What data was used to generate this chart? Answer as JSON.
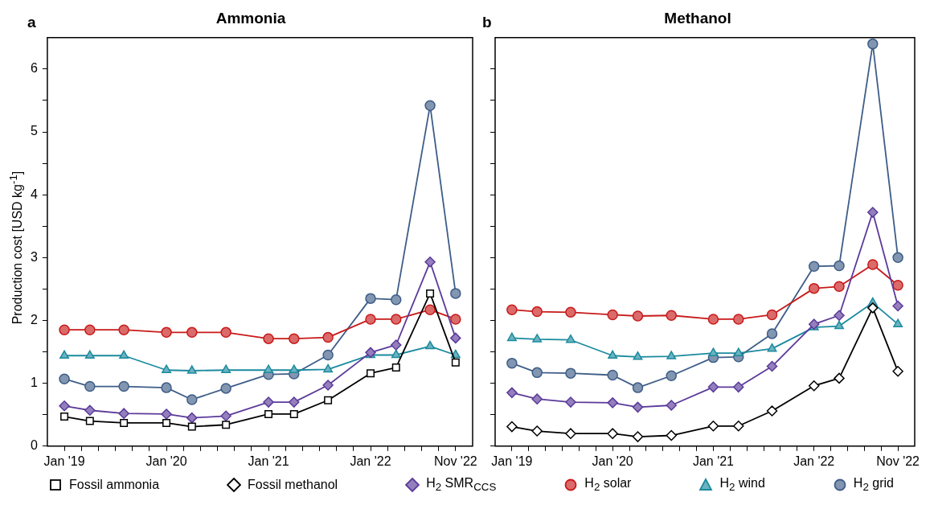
{
  "chart_data": [
    {
      "type": "line",
      "title": "Ammonia",
      "ylabel": "Production cost [USD kg$^{-1}$]",
      "annotations": [
        "a"
      ],
      "x": [
        "2019-01",
        "2019-04",
        "2019-08",
        "2020-01",
        "2020-04",
        "2020-08",
        "2021-01",
        "2021-04",
        "2021-08",
        "2022-01",
        "2022-04",
        "2022-08",
        "2022-11"
      ],
      "series": [
        {
          "name": "Fossil ammonia",
          "color": "#000000",
          "marker": "square",
          "values": [
            0.47,
            0.4,
            0.37,
            0.37,
            0.31,
            0.34,
            0.51,
            0.51,
            0.73,
            1.16,
            1.25,
            2.43,
            1.33
          ]
        },
        {
          "name": "H$_{2}$ SMR$_{CCS}$",
          "color": "#5b3a9a",
          "marker": "diamond",
          "values": [
            0.64,
            0.57,
            0.52,
            0.51,
            0.45,
            0.48,
            0.7,
            0.7,
            0.97,
            1.49,
            1.61,
            2.93,
            1.72
          ]
        },
        {
          "name": "H$_{2}$ solar",
          "color": "#c81a1a",
          "marker": "circle",
          "values": [
            1.85,
            1.85,
            1.85,
            1.81,
            1.81,
            1.81,
            1.71,
            1.71,
            1.73,
            2.02,
            2.02,
            2.17,
            2.02
          ]
        },
        {
          "name": "H$_{2}$ wind",
          "color": "#1b8a9e",
          "marker": "triangle",
          "values": [
            1.44,
            1.44,
            1.44,
            1.21,
            1.2,
            1.21,
            1.21,
            1.21,
            1.22,
            1.45,
            1.45,
            1.59,
            1.45
          ]
        },
        {
          "name": "H$_{2}$ grid",
          "color": "#3e5d87",
          "marker": "circle",
          "values": [
            1.07,
            0.95,
            0.95,
            0.93,
            0.74,
            0.92,
            1.14,
            1.15,
            1.45,
            2.35,
            2.33,
            5.42,
            2.43
          ]
        }
      ],
      "xlim": [
        "2018-11",
        "2023-01"
      ],
      "xticks": [
        {
          "value": "2019-01",
          "label": "Jan '19"
        },
        {
          "value": "2019-03",
          "label": null
        },
        {
          "value": "2019-05",
          "label": null
        },
        {
          "value": "2019-07",
          "label": null
        },
        {
          "value": "2019-09",
          "label": null
        },
        {
          "value": "2019-11",
          "label": null
        },
        {
          "value": "2020-01",
          "label": "Jan '20"
        },
        {
          "value": "2020-03",
          "label": null
        },
        {
          "value": "2020-05",
          "label": null
        },
        {
          "value": "2020-07",
          "label": null
        },
        {
          "value": "2020-09",
          "label": null
        },
        {
          "value": "2020-11",
          "label": null
        },
        {
          "value": "2021-01",
          "label": "Jan '21"
        },
        {
          "value": "2021-03",
          "label": null
        },
        {
          "value": "2021-05",
          "label": null
        },
        {
          "value": "2021-07",
          "label": null
        },
        {
          "value": "2021-09",
          "label": null
        },
        {
          "value": "2021-11",
          "label": null
        },
        {
          "value": "2022-01",
          "label": "Jan '22"
        },
        {
          "value": "2022-03",
          "label": null
        },
        {
          "value": "2022-05",
          "label": null
        },
        {
          "value": "2022-07",
          "label": null
        },
        {
          "value": "2022-09",
          "label": null
        },
        {
          "value": "2022-11",
          "label": "Nov '22"
        }
      ],
      "ylim": [
        0,
        6.5
      ],
      "yticks": [
        0,
        {
          "value": 0.5,
          "label": null
        },
        1,
        {
          "value": 1.5,
          "label": null
        },
        2,
        {
          "value": 2.5,
          "label": null
        },
        3,
        {
          "value": 3.5,
          "label": null
        },
        4,
        {
          "value": 4.5,
          "label": null
        },
        5,
        {
          "value": 5.5,
          "label": null
        },
        6
      ],
      "grid": false,
      "legend": "bottom"
    },
    {
      "type": "line",
      "title": "Methanol",
      "annotations": [
        "b"
      ],
      "x": [
        "2019-01",
        "2019-04",
        "2019-08",
        "2020-01",
        "2020-04",
        "2020-08",
        "2021-01",
        "2021-04",
        "2021-08",
        "2022-01",
        "2022-04",
        "2022-08",
        "2022-11"
      ],
      "series": [
        {
          "name": "Fossil methanol",
          "color": "#000000",
          "marker": "diamond",
          "values": [
            0.31,
            0.24,
            0.2,
            0.2,
            0.15,
            0.17,
            0.32,
            0.32,
            0.56,
            0.96,
            1.08,
            2.2,
            1.19
          ]
        },
        {
          "color": "#5b3a9a",
          "marker": "diamond",
          "values": [
            0.85,
            0.75,
            0.7,
            0.69,
            0.62,
            0.65,
            0.94,
            0.94,
            1.27,
            1.94,
            2.08,
            3.72,
            2.23
          ]
        },
        {
          "color": "#c81a1a",
          "marker": "circle",
          "values": [
            2.17,
            2.14,
            2.13,
            2.09,
            2.07,
            2.08,
            2.02,
            2.02,
            2.09,
            2.51,
            2.54,
            2.89,
            2.56
          ]
        },
        {
          "color": "#1b8a9e",
          "marker": "triangle",
          "values": [
            1.72,
            1.7,
            1.69,
            1.44,
            1.42,
            1.43,
            1.48,
            1.48,
            1.55,
            1.89,
            1.91,
            2.28,
            1.94
          ]
        },
        {
          "color": "#3e5d87",
          "marker": "circle",
          "values": [
            1.32,
            1.17,
            1.16,
            1.13,
            0.93,
            1.12,
            1.41,
            1.42,
            1.79,
            2.86,
            2.87,
            6.4,
            3.0
          ]
        }
      ],
      "xlim": [
        "2018-11",
        "2023-01"
      ],
      "xticks": [
        {
          "value": "2019-01",
          "label": "Jan '19"
        },
        {
          "value": "2019-03",
          "label": null
        },
        {
          "value": "2019-05",
          "label": null
        },
        {
          "value": "2019-07",
          "label": null
        },
        {
          "value": "2019-09",
          "label": null
        },
        {
          "value": "2019-11",
          "label": null
        },
        {
          "value": "2020-01",
          "label": "Jan '20"
        },
        {
          "value": "2020-03",
          "label": null
        },
        {
          "value": "2020-05",
          "label": null
        },
        {
          "value": "2020-07",
          "label": null
        },
        {
          "value": "2020-09",
          "label": null
        },
        {
          "value": "2020-11",
          "label": null
        },
        {
          "value": "2021-01",
          "label": "Jan '21"
        },
        {
          "value": "2021-03",
          "label": null
        },
        {
          "value": "2021-05",
          "label": null
        },
        {
          "value": "2021-07",
          "label": null
        },
        {
          "value": "2021-09",
          "label": null
        },
        {
          "value": "2021-11",
          "label": null
        },
        {
          "value": "2022-01",
          "label": "Jan '22"
        },
        {
          "value": "2022-03",
          "label": null
        },
        {
          "value": "2022-05",
          "label": null
        },
        {
          "value": "2022-07",
          "label": null
        },
        {
          "value": "2022-09",
          "label": null
        },
        {
          "value": "2022-11",
          "label": "Nov '22"
        }
      ],
      "ylim": [
        0,
        6.5
      ],
      "yticks": [
        0,
        {
          "value": 0.5,
          "label": null
        },
        1,
        {
          "value": 1.5,
          "label": null
        },
        2,
        {
          "value": 2.5,
          "label": null
        },
        3,
        {
          "value": 3.5,
          "label": null
        },
        4,
        {
          "value": 4.5,
          "label": null
        },
        5,
        {
          "value": 5.5,
          "label": null
        },
        6
      ],
      "grid": false,
      "legend": "bottom",
      "tick_labels": "x"
    }
  ]
}
